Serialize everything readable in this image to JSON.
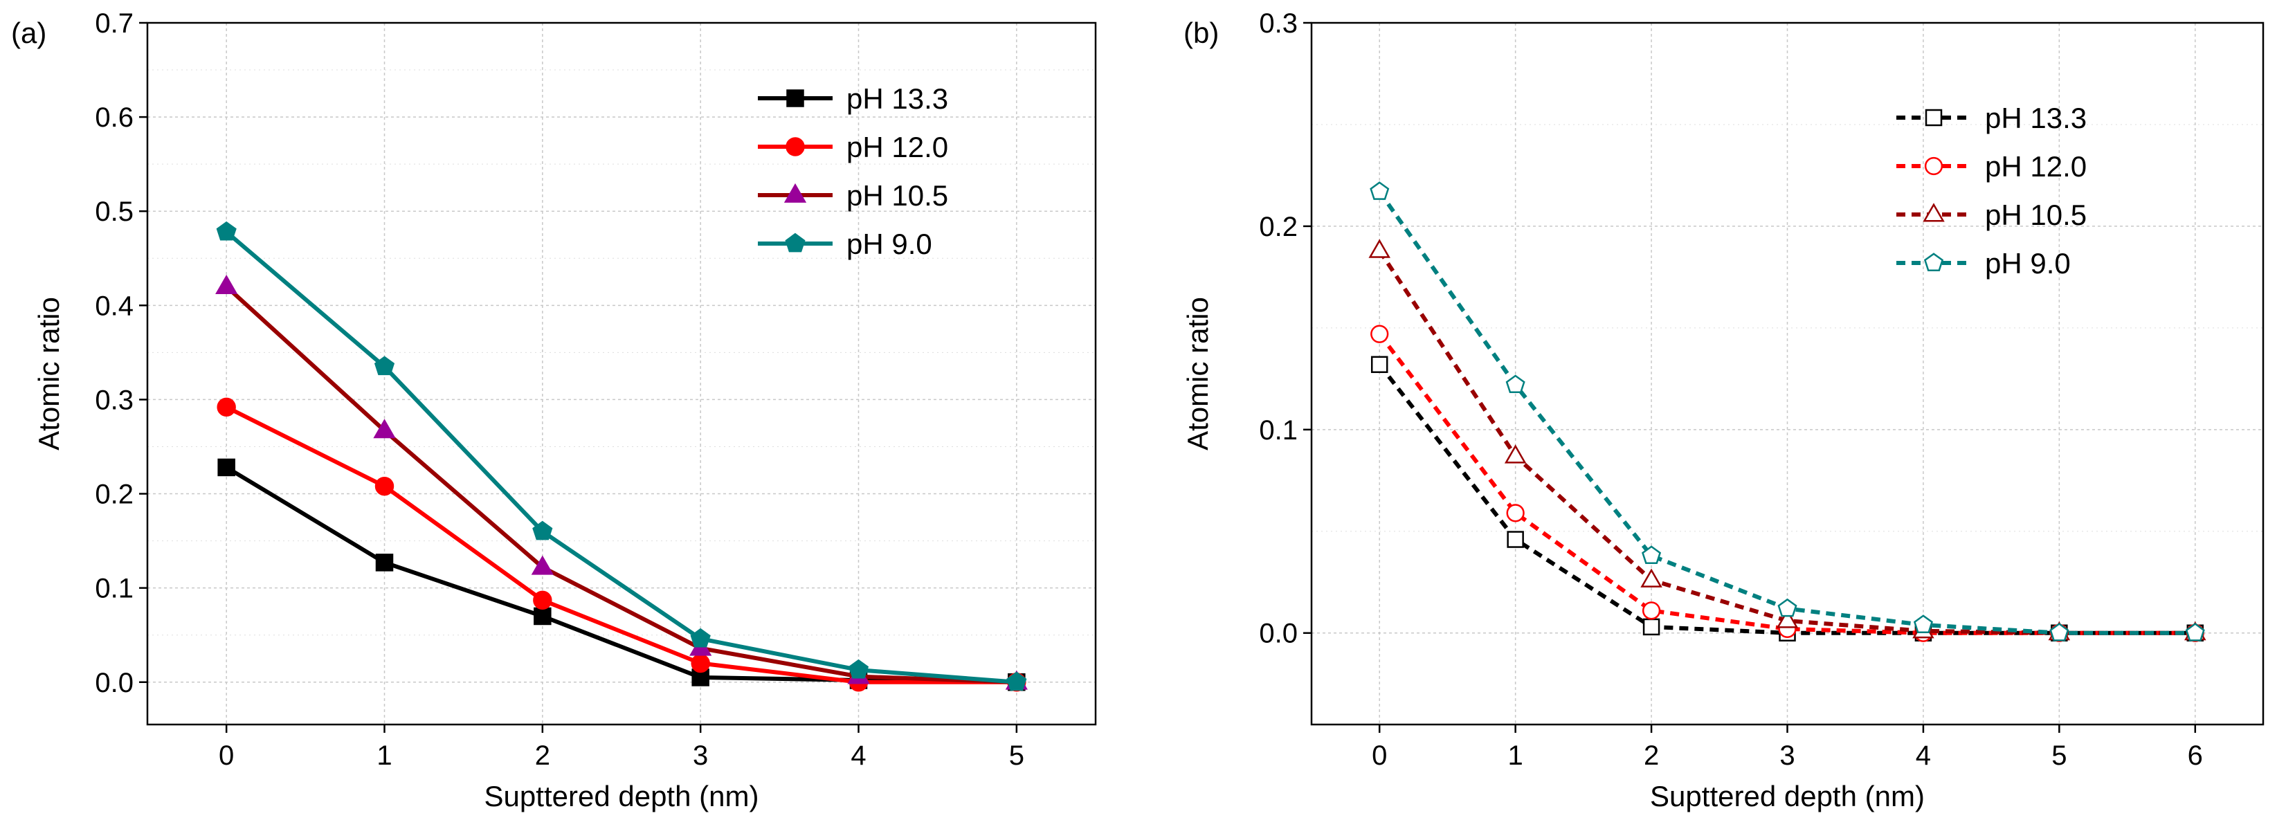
{
  "chart_data": [
    {
      "panel_label": "(a)",
      "type": "line",
      "line_style": "solid",
      "marker_fill": "filled",
      "xlabel": "Supttered depth (nm)",
      "ylabel": "Atomic ratio",
      "x": [
        0,
        1,
        2,
        3,
        4,
        5
      ],
      "xlim": [
        -0.5,
        5.5
      ],
      "ylim": [
        -0.045,
        0.7
      ],
      "xticks": [
        0,
        1,
        2,
        3,
        4,
        5
      ],
      "yticks": [
        0.0,
        0.1,
        0.2,
        0.3,
        0.4,
        0.5,
        0.6,
        0.7
      ],
      "ytick_labels": [
        "0.0",
        "0.1",
        "0.2",
        "0.3",
        "0.4",
        "0.5",
        "0.6",
        "0.7"
      ],
      "grid": true,
      "legend_position": "top-right",
      "series": [
        {
          "name": "pH 13.3",
          "color": "#000000",
          "marker": "square",
          "values": [
            0.228,
            0.127,
            0.07,
            0.005,
            0.002,
            0.0
          ]
        },
        {
          "name": "pH 12.0",
          "color": "#ff0000",
          "marker": "circle",
          "values": [
            0.292,
            0.208,
            0.087,
            0.02,
            0.0,
            0.0
          ]
        },
        {
          "name": "pH 10.5",
          "color": "#990000",
          "marker": "triangle",
          "marker_color": "#990099",
          "values": [
            0.42,
            0.267,
            0.122,
            0.036,
            0.006,
            0.0
          ]
        },
        {
          "name": "pH 9.0",
          "color": "#008080",
          "marker": "pentagon",
          "values": [
            0.478,
            0.335,
            0.16,
            0.046,
            0.013,
            0.0
          ]
        }
      ]
    },
    {
      "panel_label": "(b)",
      "type": "line",
      "line_style": "dashed",
      "marker_fill": "open",
      "xlabel": "Supttered depth (nm)",
      "ylabel": "Atomic ratio",
      "x": [
        0,
        1,
        2,
        3,
        4,
        5,
        6
      ],
      "xlim": [
        -0.5,
        6.5
      ],
      "ylim": [
        -0.045,
        0.3
      ],
      "xticks": [
        0,
        1,
        2,
        3,
        4,
        5,
        6
      ],
      "yticks": [
        0.0,
        0.1,
        0.2,
        0.3
      ],
      "ytick_labels": [
        "0.0",
        "0.1",
        "0.2",
        "0.3"
      ],
      "grid": true,
      "legend_position": "top-right",
      "series": [
        {
          "name": "pH 13.3",
          "color": "#000000",
          "marker": "square",
          "values": [
            0.132,
            0.046,
            0.003,
            0.0,
            0.0,
            0.0,
            0.0
          ]
        },
        {
          "name": "pH 12.0",
          "color": "#ff0000",
          "marker": "circle",
          "values": [
            0.147,
            0.059,
            0.011,
            0.002,
            0.0,
            0.0,
            0.0
          ]
        },
        {
          "name": "pH 10.5",
          "color": "#990000",
          "marker": "triangle",
          "values": [
            0.188,
            0.087,
            0.026,
            0.006,
            0.001,
            0.0,
            0.0
          ]
        },
        {
          "name": "pH 9.0",
          "color": "#008080",
          "marker": "pentagon",
          "values": [
            0.217,
            0.122,
            0.038,
            0.012,
            0.004,
            0.0,
            0.0
          ]
        }
      ]
    }
  ]
}
